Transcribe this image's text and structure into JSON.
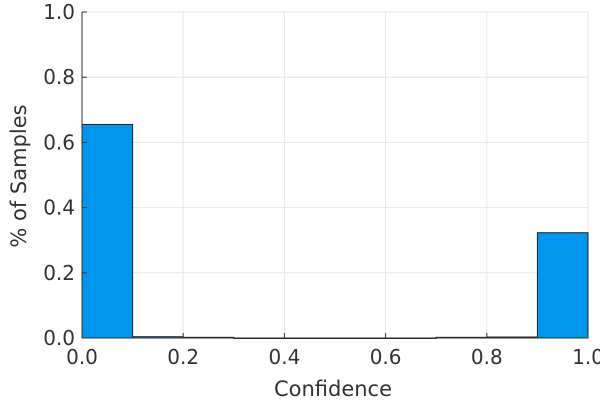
{
  "chart_data": {
    "type": "bar",
    "subtype": "histogram",
    "xlabel": "Confidence",
    "ylabel": "% of Samples",
    "xlim": [
      0.0,
      1.0
    ],
    "ylim": [
      0.0,
      1.0
    ],
    "x_ticks": [
      "0.0",
      "0.2",
      "0.4",
      "0.6",
      "0.8",
      "1.0"
    ],
    "y_ticks": [
      "0.0",
      "0.2",
      "0.4",
      "0.6",
      "0.8",
      "1.0"
    ],
    "grid": true,
    "legend": "none",
    "bar_color": "#0096ee",
    "bins": [
      {
        "x0": 0.0,
        "x1": 0.1,
        "value": 0.655
      },
      {
        "x0": 0.1,
        "x1": 0.2,
        "value": 0.004
      },
      {
        "x0": 0.2,
        "x1": 0.3,
        "value": 0.002
      },
      {
        "x0": 0.3,
        "x1": 0.4,
        "value": 0.0
      },
      {
        "x0": 0.4,
        "x1": 0.5,
        "value": 0.0
      },
      {
        "x0": 0.5,
        "x1": 0.6,
        "value": 0.0
      },
      {
        "x0": 0.6,
        "x1": 0.7,
        "value": 0.0
      },
      {
        "x0": 0.7,
        "x1": 0.8,
        "value": 0.002
      },
      {
        "x0": 0.8,
        "x1": 0.9,
        "value": 0.003
      },
      {
        "x0": 0.9,
        "x1": 1.0,
        "value": 0.323
      }
    ]
  }
}
